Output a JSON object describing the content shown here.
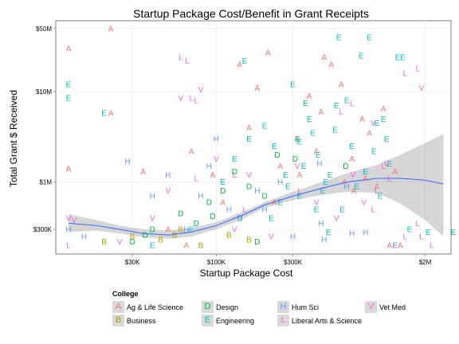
{
  "chart_data": {
    "type": "scatter",
    "title": "Startup Package Cost/Benefit in Grant Receipts",
    "xlabel": "Startup Package Cost",
    "ylabel": "Total Grant $ Received",
    "x_scale": "log10",
    "y_scale": "log10",
    "xlim": [
      10000,
      2900000
    ],
    "ylim": [
      160000,
      61000000
    ],
    "x_ticks": [
      {
        "value": 30000,
        "label": "$30K"
      },
      {
        "value": 100000,
        "label": "$100K"
      },
      {
        "value": 300000,
        "label": "$300K"
      },
      {
        "value": 2000000,
        "label": "$2M"
      }
    ],
    "y_ticks": [
      {
        "value": 300000,
        "label": "$300K"
      },
      {
        "value": 1000000,
        "label": "$1M"
      },
      {
        "value": 10000000,
        "label": "$10M"
      },
      {
        "value": 50000000,
        "label": "$50M"
      }
    ],
    "grid": true,
    "legend_position": "bottom",
    "legend_title": "College",
    "series": [
      {
        "name": "Ag & Life Science",
        "letter": "A",
        "color": "#F8766D",
        "points": [
          [
            12000,
            30000000
          ],
          [
            22000,
            50000000
          ],
          [
            12000,
            1400000
          ],
          [
            22000,
            5800000
          ],
          [
            35000,
            1300000
          ],
          [
            50000,
            300000
          ],
          [
            65000,
            200000
          ],
          [
            70000,
            2200000
          ],
          [
            95000,
            1200000
          ],
          [
            110000,
            600000
          ],
          [
            180000,
            11000000
          ],
          [
            140000,
            20000000
          ],
          [
            210000,
            27000000
          ],
          [
            160000,
            4000000
          ],
          [
            250000,
            1500000
          ],
          [
            320000,
            3000000
          ],
          [
            330000,
            1200000
          ],
          [
            380000,
            9000000
          ],
          [
            450000,
            6000000
          ],
          [
            520000,
            20000000
          ],
          [
            600000,
            12000000
          ],
          [
            630000,
            1000000
          ],
          [
            720000,
            800000
          ],
          [
            810000,
            5000000
          ],
          [
            900000,
            3500000
          ],
          [
            1000000,
            900000
          ],
          [
            1100000,
            6500000
          ],
          [
            1200000,
            200000
          ],
          [
            1300000,
            1300000
          ],
          [
            1400000,
            200000
          ],
          [
            470000,
            24000000
          ],
          [
            230000,
            600000
          ],
          [
            420000,
            2200000
          ],
          [
            700000,
            1800000
          ],
          [
            850000,
            1100000
          ]
        ]
      },
      {
        "name": "Business",
        "letter": "B",
        "color": "#B79F00",
        "points": [
          [
            20000,
            220000
          ],
          [
            30000,
            250000
          ],
          [
            45000,
            230000
          ],
          [
            60000,
            300000
          ],
          [
            80000,
            200000
          ],
          [
            120000,
            260000
          ],
          [
            160000,
            230000
          ],
          [
            55000,
            260000
          ]
        ]
      },
      {
        "name": "Design",
        "letter": "D",
        "color": "#00BA38",
        "points": [
          [
            30000,
            220000
          ],
          [
            36000,
            260000
          ],
          [
            40000,
            300000
          ],
          [
            60000,
            450000
          ],
          [
            75000,
            350000
          ],
          [
            95000,
            420000
          ],
          [
            110000,
            800000
          ],
          [
            130000,
            1300000
          ],
          [
            160000,
            900000
          ],
          [
            180000,
            220000
          ],
          [
            240000,
            2000000
          ],
          [
            310000,
            1800000
          ],
          [
            640000,
            1500000
          ],
          [
            90000,
            600000
          ],
          [
            140000,
            400000
          ],
          [
            200000,
            700000
          ]
        ]
      },
      {
        "name": "Engineering",
        "letter": "E",
        "color": "#00BFC4",
        "points": [
          [
            12000,
            12000000
          ],
          [
            12000,
            8500000
          ],
          [
            20000,
            5800000
          ],
          [
            40000,
            200000
          ],
          [
            70000,
            300000
          ],
          [
            110000,
            1000000
          ],
          [
            130000,
            1800000
          ],
          [
            150000,
            22000000
          ],
          [
            160000,
            3000000
          ],
          [
            200000,
            4200000
          ],
          [
            230000,
            2500000
          ],
          [
            300000,
            12000000
          ],
          [
            320000,
            3000000
          ],
          [
            350000,
            1500000
          ],
          [
            380000,
            5000000
          ],
          [
            400000,
            3500000
          ],
          [
            430000,
            2000000
          ],
          [
            480000,
            1000000
          ],
          [
            550000,
            3800000
          ],
          [
            580000,
            40000000
          ],
          [
            650000,
            8000000
          ],
          [
            700000,
            2500000
          ],
          [
            800000,
            25000000
          ],
          [
            900000,
            40000000
          ],
          [
            1000000,
            4500000
          ],
          [
            1100000,
            5000000
          ],
          [
            1200000,
            1600000
          ],
          [
            1300000,
            200000
          ],
          [
            1600000,
            300000
          ],
          [
            2100000,
            280000
          ],
          [
            250000,
            600000
          ],
          [
            280000,
            900000
          ],
          [
            330000,
            2800000
          ],
          [
            360000,
            7500000
          ],
          [
            420000,
            500000
          ],
          [
            460000,
            800000
          ],
          [
            510000,
            1200000
          ],
          [
            560000,
            7000000
          ],
          [
            610000,
            500000
          ],
          [
            750000,
            900000
          ],
          [
            850000,
            1300000
          ],
          [
            960000,
            2200000
          ],
          [
            1050000,
            700000
          ],
          [
            1150000,
            3000000
          ],
          [
            3000000,
            280000
          ],
          [
            1350000,
            24000000
          ],
          [
            1450000,
            24000000
          ],
          [
            500000,
            280000
          ],
          [
            220000,
            400000
          ],
          [
            270000,
            1200000
          ],
          [
            330000,
            700000
          ]
        ]
      },
      {
        "name": "Hum Sci",
        "letter": "H",
        "color": "#619CFF",
        "points": [
          [
            12000,
            300000
          ],
          [
            15000,
            250000
          ],
          [
            28000,
            1700000
          ],
          [
            40000,
            700000
          ],
          [
            50000,
            1200000
          ],
          [
            65000,
            300000
          ],
          [
            80000,
            700000
          ],
          [
            90000,
            1500000
          ],
          [
            100000,
            3000000
          ],
          [
            120000,
            500000
          ],
          [
            140000,
            400000
          ],
          [
            180000,
            800000
          ],
          [
            200000,
            500000
          ],
          [
            300000,
            250000
          ],
          [
            440000,
            1600000
          ],
          [
            470000,
            230000
          ],
          [
            700000,
            270000
          ],
          [
            850000,
            280000
          ],
          [
            250000,
            1000000
          ],
          [
            650000,
            900000
          ],
          [
            450000,
            350000
          ]
        ]
      },
      {
        "name": "Liberal Arts & Science",
        "letter": "L",
        "color": "#F564E3",
        "points": [
          [
            12000,
            200000
          ],
          [
            70000,
            8500000
          ],
          [
            75000,
            1100000
          ],
          [
            130000,
            1200000
          ],
          [
            330000,
            800000
          ],
          [
            600000,
            6000000
          ],
          [
            700000,
            7500000
          ],
          [
            1000000,
            800000
          ],
          [
            1100000,
            1500000
          ],
          [
            1300000,
            200000
          ],
          [
            1500000,
            250000
          ],
          [
            1800000,
            350000
          ],
          [
            1900000,
            250000
          ],
          [
            2200000,
            200000
          ],
          [
            60000,
            24000000
          ],
          [
            66000,
            22000000
          ],
          [
            75000,
            8000000
          ],
          [
            150000,
            500000
          ],
          [
            1800000,
            18000000
          ],
          [
            1500000,
            16000000
          ],
          [
            950000,
            500000
          ],
          [
            1200000,
            1100000
          ]
        ]
      },
      {
        "name": "Vet Med",
        "letter": "V",
        "color": "#F564E3",
        "points": [
          [
            12000,
            400000
          ],
          [
            25000,
            220000
          ],
          [
            50000,
            800000
          ],
          [
            60000,
            8500000
          ],
          [
            80000,
            10500000
          ],
          [
            100000,
            1800000
          ],
          [
            130000,
            300000
          ],
          [
            160000,
            1200000
          ],
          [
            220000,
            250000
          ],
          [
            320000,
            1500000
          ],
          [
            420000,
            600000
          ],
          [
            560000,
            400000
          ],
          [
            710000,
            1200000
          ],
          [
            830000,
            600000
          ],
          [
            950000,
            4500000
          ],
          [
            1150000,
            1600000
          ],
          [
            1900000,
            11000000
          ],
          [
            13000,
            380000
          ],
          [
            40000,
            400000
          ]
        ]
      }
    ],
    "smooth_line": {
      "x": [
        12000,
        18000,
        25000,
        35000,
        50000,
        70000,
        100000,
        150000,
        200000,
        300000,
        450000,
        650000,
        1000000,
        1400000,
        2000000,
        2600000
      ],
      "y": [
        350000,
        330000,
        300000,
        270000,
        260000,
        280000,
        330000,
        440000,
        560000,
        700000,
        850000,
        1000000,
        1100000,
        1100000,
        1050000,
        950000
      ]
    },
    "confidence_band": {
      "x": [
        12000,
        18000,
        25000,
        35000,
        50000,
        70000,
        100000,
        150000,
        200000,
        300000,
        450000,
        650000,
        1000000,
        1400000,
        2000000,
        2600000
      ],
      "upper": [
        440000,
        380000,
        330000,
        300000,
        290000,
        310000,
        360000,
        480000,
        600000,
        780000,
        990000,
        1250000,
        1550000,
        2000000,
        2700000,
        3400000
      ],
      "lower": [
        280000,
        290000,
        270000,
        245000,
        235000,
        250000,
        300000,
        400000,
        520000,
        630000,
        720000,
        780000,
        760000,
        580000,
        380000,
        250000
      ]
    }
  }
}
